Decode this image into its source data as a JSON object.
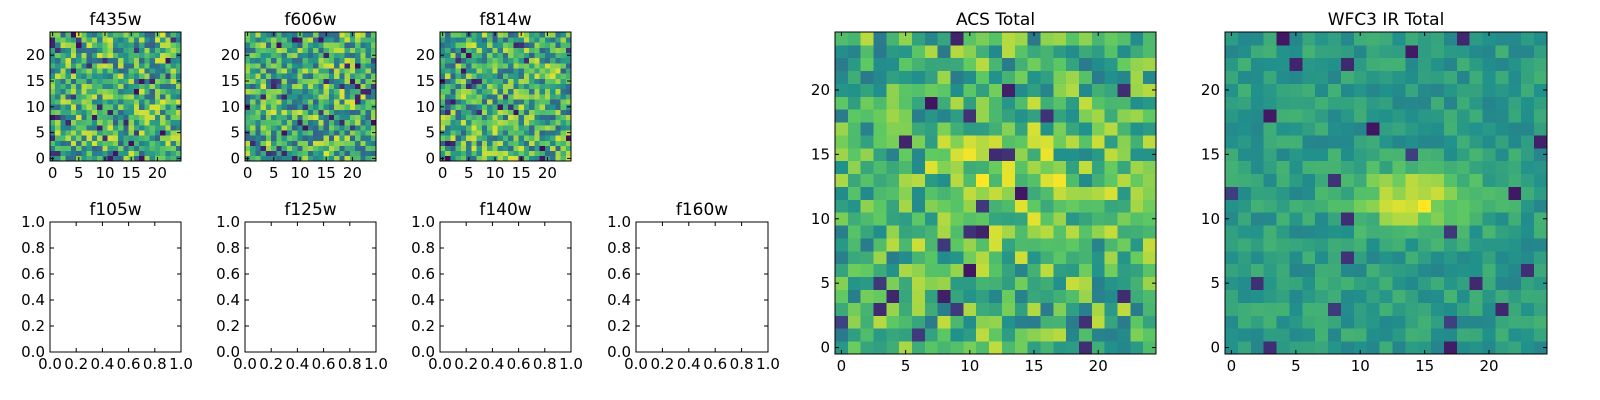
{
  "figure": {
    "background": "#ffffff"
  },
  "colormap": [
    "#440154",
    "#3b528b",
    "#21918c",
    "#5ec962",
    "#fde725"
  ],
  "chart_data": [
    {
      "type": "heatmap",
      "title": "f435w",
      "xlim": [
        -0.5,
        24.5
      ],
      "ylim": [
        -0.5,
        24.5
      ],
      "grid_size": 25,
      "xticks": [
        0,
        5,
        10,
        15,
        20
      ],
      "yticks": [
        0,
        5,
        10,
        15,
        20
      ],
      "texture": "noise",
      "seed": 11
    },
    {
      "type": "heatmap",
      "title": "f606w",
      "xlim": [
        -0.5,
        24.5
      ],
      "ylim": [
        -0.5,
        24.5
      ],
      "grid_size": 25,
      "xticks": [
        0,
        5,
        10,
        15,
        20
      ],
      "yticks": [
        0,
        5,
        10,
        15,
        20
      ],
      "texture": "noise",
      "seed": 23
    },
    {
      "type": "heatmap",
      "title": "f814w",
      "xlim": [
        -0.5,
        24.5
      ],
      "ylim": [
        -0.5,
        24.5
      ],
      "grid_size": 25,
      "xticks": [
        0,
        5,
        10,
        15,
        20
      ],
      "yticks": [
        0,
        5,
        10,
        15,
        20
      ],
      "texture": "noise",
      "seed": 37
    },
    {
      "type": "empty",
      "title": "f105w",
      "xlim": [
        0,
        1
      ],
      "ylim": [
        0,
        1
      ],
      "xticks": [
        "0.0",
        "0.2",
        "0.4",
        "0.6",
        "0.8",
        "1.0"
      ],
      "yticks": [
        "0.0",
        "0.2",
        "0.4",
        "0.6",
        "0.8",
        "1.0"
      ]
    },
    {
      "type": "empty",
      "title": "f125w",
      "xlim": [
        0,
        1
      ],
      "ylim": [
        0,
        1
      ],
      "xticks": [
        "0.0",
        "0.2",
        "0.4",
        "0.6",
        "0.8",
        "1.0"
      ],
      "yticks": [
        "0.0",
        "0.2",
        "0.4",
        "0.6",
        "0.8",
        "1.0"
      ]
    },
    {
      "type": "empty",
      "title": "f140w",
      "xlim": [
        0,
        1
      ],
      "ylim": [
        0,
        1
      ],
      "xticks": [
        "0.0",
        "0.2",
        "0.4",
        "0.6",
        "0.8",
        "1.0"
      ],
      "yticks": [
        "0.0",
        "0.2",
        "0.4",
        "0.6",
        "0.8",
        "1.0"
      ]
    },
    {
      "type": "empty",
      "title": "f160w",
      "xlim": [
        0,
        1
      ],
      "ylim": [
        0,
        1
      ],
      "xticks": [
        "0.0",
        "0.2",
        "0.4",
        "0.6",
        "0.8",
        "1.0"
      ],
      "yticks": [
        "0.0",
        "0.2",
        "0.4",
        "0.6",
        "0.8",
        "1.0"
      ]
    },
    {
      "type": "heatmap",
      "title": "ACS Total",
      "xlim": [
        -0.5,
        24.5
      ],
      "ylim": [
        -0.5,
        24.5
      ],
      "grid_size": 25,
      "xticks": [
        0,
        5,
        10,
        15,
        20
      ],
      "yticks": [
        0,
        5,
        10,
        15,
        20
      ],
      "texture": "mottled",
      "seed": 51
    },
    {
      "type": "heatmap",
      "title": "WFC3 IR Total",
      "xlim": [
        -0.5,
        24.5
      ],
      "ylim": [
        -0.5,
        24.5
      ],
      "grid_size": 25,
      "xticks": [
        0,
        5,
        10,
        15,
        20
      ],
      "yticks": [
        0,
        5,
        10,
        15,
        20
      ],
      "texture": "blob",
      "seed": 67
    }
  ]
}
